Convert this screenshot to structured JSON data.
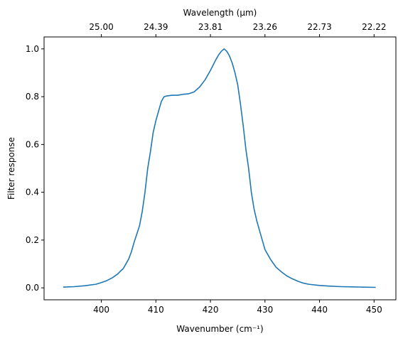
{
  "chart_data": {
    "type": "line",
    "xlabel": "Wavenumber (cm⁻¹)",
    "ylabel": "Filter response",
    "top_xlabel": "Wavelength (μm)",
    "xlim": [
      389.5,
      454
    ],
    "ylim": [
      -0.05,
      1.05
    ],
    "x_ticks": [
      400,
      410,
      420,
      430,
      440,
      450
    ],
    "x_tick_labels": [
      "400",
      "410",
      "420",
      "430",
      "440",
      "450"
    ],
    "y_ticks": [
      0.0,
      0.2,
      0.4,
      0.6,
      0.8,
      1.0
    ],
    "y_tick_labels": [
      "0.0",
      "0.2",
      "0.4",
      "0.6",
      "0.8",
      "1.0"
    ],
    "top_ticks": [
      400,
      410,
      420,
      430,
      440,
      450
    ],
    "top_tick_labels": [
      "25.00",
      "24.39",
      "23.81",
      "23.26",
      "22.73",
      "22.22"
    ],
    "grid": false,
    "color": "#1f77b4",
    "series": [
      {
        "x": [
          393,
          395,
          397,
          399,
          400,
          401,
          402,
          403,
          403.5,
          404,
          404.5,
          405,
          405.5,
          406,
          406.5,
          407,
          407.5,
          408,
          408.5,
          409,
          409.5,
          410,
          410.5,
          411,
          411.5,
          412,
          413,
          414,
          415,
          416,
          417,
          418,
          419,
          420,
          421,
          421.5,
          422,
          422.5,
          423,
          423.5,
          424,
          424.5,
          425,
          425.5,
          426,
          426.5,
          427,
          427.5,
          428,
          428.5,
          429,
          429.5,
          430,
          431,
          432,
          433,
          434,
          435,
          436,
          437,
          438,
          440,
          442,
          444,
          446,
          448,
          450.3
        ],
        "y": [
          0.003,
          0.005,
          0.009,
          0.015,
          0.022,
          0.03,
          0.042,
          0.058,
          0.07,
          0.08,
          0.1,
          0.12,
          0.15,
          0.19,
          0.225,
          0.26,
          0.32,
          0.4,
          0.5,
          0.57,
          0.65,
          0.7,
          0.74,
          0.78,
          0.8,
          0.803,
          0.806,
          0.806,
          0.81,
          0.812,
          0.82,
          0.84,
          0.87,
          0.91,
          0.955,
          0.975,
          0.99,
          1.0,
          0.99,
          0.97,
          0.94,
          0.9,
          0.85,
          0.77,
          0.68,
          0.58,
          0.5,
          0.4,
          0.33,
          0.28,
          0.24,
          0.2,
          0.16,
          0.12,
          0.087,
          0.067,
          0.05,
          0.038,
          0.028,
          0.02,
          0.015,
          0.01,
          0.007,
          0.005,
          0.004,
          0.003,
          0.002
        ]
      }
    ]
  }
}
